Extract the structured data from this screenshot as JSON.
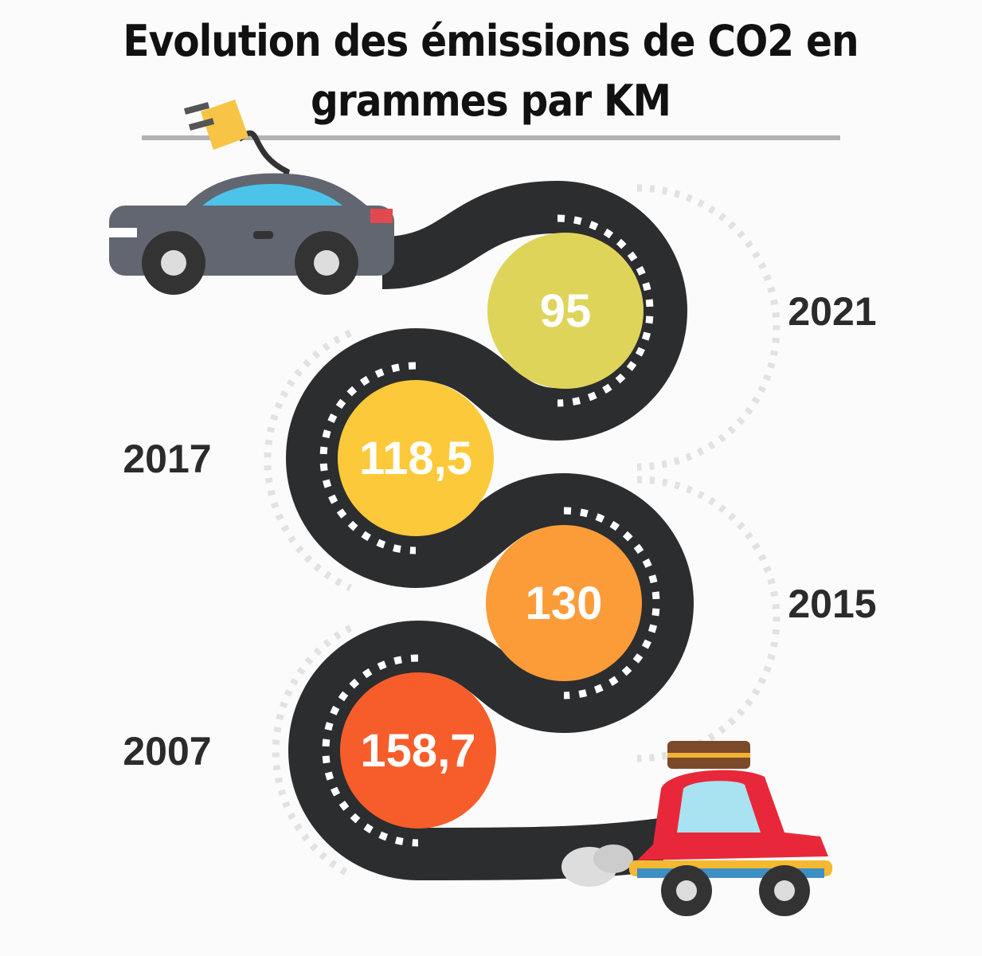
{
  "header": {
    "title_lines": [
      "Evolution des émissions de CO2 en",
      "grammes par KM"
    ]
  },
  "milestones": [
    {
      "year": "2021",
      "value": "95",
      "color": "#dfd45a"
    },
    {
      "year": "2017",
      "value": "118,5",
      "color": "#fcc93a"
    },
    {
      "year": "2015",
      "value": "130",
      "color": "#fc9c38"
    },
    {
      "year": "2007",
      "value": "158,7",
      "color": "#f75d2a"
    }
  ]
}
